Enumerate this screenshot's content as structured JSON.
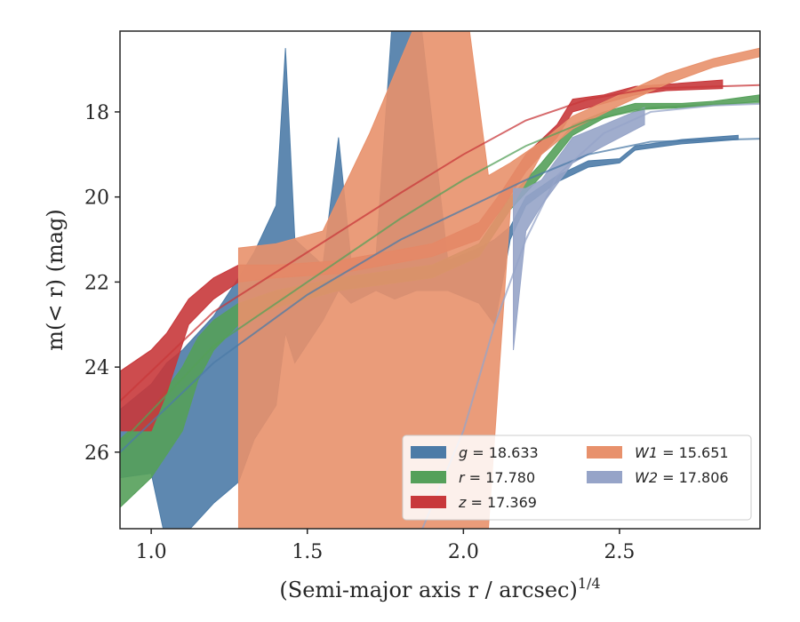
{
  "chart_data": {
    "type": "line",
    "xlabel": "(Semi-major axis r / arcsec)^1/4",
    "ylabel": "m(< r) (mag)",
    "xlim": [
      0.9,
      2.95
    ],
    "ylim": [
      27.8,
      16.1
    ],
    "y_inverted": true,
    "xticks": [
      1.0,
      1.5,
      2.0,
      2.5
    ],
    "xtick_labels": [
      "1.0",
      "1.5",
      "2.0",
      "2.5"
    ],
    "yticks": [
      18,
      20,
      22,
      24,
      26
    ],
    "ytick_labels": [
      "18",
      "20",
      "22",
      "24",
      "26"
    ],
    "grid": false,
    "legend_position": "lower-right",
    "legend_columns": 2,
    "series": [
      {
        "name": "g = 18.633",
        "legend_label": "g = 18.633",
        "color": "#4c7ba7",
        "band": [
          {
            "x": 0.9,
            "lo": 25.0,
            "hi": 26.6
          },
          {
            "x": 1.0,
            "lo": 24.4,
            "hi": 26.5
          },
          {
            "x": 1.05,
            "lo": 23.9,
            "hi": 28.2
          },
          {
            "x": 1.1,
            "lo": 23.6,
            "hi": 28.0
          },
          {
            "x": 1.2,
            "lo": 22.8,
            "hi": 27.2
          },
          {
            "x": 1.28,
            "lo": 21.9,
            "hi": 26.7
          },
          {
            "x": 1.33,
            "lo": 21.3,
            "hi": 25.7
          },
          {
            "x": 1.4,
            "lo": 20.2,
            "hi": 24.9
          },
          {
            "x": 1.43,
            "lo": 16.5,
            "hi": 23.2
          },
          {
            "x": 1.46,
            "lo": 21.0,
            "hi": 23.9
          },
          {
            "x": 1.55,
            "lo": 21.6,
            "hi": 22.9
          },
          {
            "x": 1.6,
            "lo": 18.6,
            "hi": 22.2
          },
          {
            "x": 1.64,
            "lo": 21.5,
            "hi": 22.5
          },
          {
            "x": 1.72,
            "lo": 21.4,
            "hi": 22.2
          },
          {
            "x": 1.78,
            "lo": 15.0,
            "hi": 22.4
          },
          {
            "x": 1.85,
            "lo": 15.0,
            "hi": 22.2
          },
          {
            "x": 1.95,
            "lo": 21.5,
            "hi": 22.2
          },
          {
            "x": 2.05,
            "lo": 21.2,
            "hi": 22.5
          },
          {
            "x": 2.1,
            "lo": 21.0,
            "hi": 23.0
          },
          {
            "x": 2.15,
            "lo": 20.7,
            "hi": 21.0
          },
          {
            "x": 2.2,
            "lo": 20.0,
            "hi": 20.2
          },
          {
            "x": 2.3,
            "lo": 19.5,
            "hi": 19.65
          },
          {
            "x": 2.4,
            "lo": 19.15,
            "hi": 19.3
          },
          {
            "x": 2.5,
            "lo": 19.1,
            "hi": 19.2
          },
          {
            "x": 2.55,
            "lo": 18.8,
            "hi": 18.9
          },
          {
            "x": 2.7,
            "lo": 18.65,
            "hi": 18.75
          },
          {
            "x": 2.88,
            "lo": 18.55,
            "hi": 18.65
          }
        ],
        "model": {
          "x": [
            0.9,
            1.2,
            1.5,
            1.8,
            2.0,
            2.2,
            2.4,
            2.6,
            2.95
          ],
          "y": [
            26.0,
            23.9,
            22.3,
            21.0,
            20.3,
            19.6,
            19.0,
            18.7,
            18.63
          ]
        }
      },
      {
        "name": "r = 17.780",
        "legend_label": "r = 17.780",
        "color": "#55a05a",
        "band": [
          {
            "x": 0.9,
            "lo": 25.7,
            "hi": 27.3
          },
          {
            "x": 1.0,
            "lo": 25.0,
            "hi": 26.6
          },
          {
            "x": 1.1,
            "lo": 24.0,
            "hi": 25.5
          },
          {
            "x": 1.15,
            "lo": 23.3,
            "hi": 24.3
          },
          {
            "x": 1.2,
            "lo": 22.9,
            "hi": 23.6
          },
          {
            "x": 1.28,
            "lo": 22.5,
            "hi": 23.0
          },
          {
            "x": 1.4,
            "lo": 22.2,
            "hi": 22.6
          },
          {
            "x": 1.6,
            "lo": 21.9,
            "hi": 22.2
          },
          {
            "x": 1.9,
            "lo": 21.6,
            "hi": 21.9
          },
          {
            "x": 2.05,
            "lo": 21.1,
            "hi": 21.4
          },
          {
            "x": 2.15,
            "lo": 20.0,
            "hi": 20.3
          },
          {
            "x": 2.25,
            "lo": 19.2,
            "hi": 19.5
          },
          {
            "x": 2.35,
            "lo": 18.3,
            "hi": 18.55
          },
          {
            "x": 2.45,
            "lo": 18.0,
            "hi": 18.15
          },
          {
            "x": 2.55,
            "lo": 17.8,
            "hi": 17.95
          },
          {
            "x": 2.7,
            "lo": 17.8,
            "hi": 17.9
          },
          {
            "x": 2.8,
            "lo": 17.75,
            "hi": 17.85
          },
          {
            "x": 2.95,
            "lo": 17.6,
            "hi": 17.75
          }
        ],
        "model": {
          "x": [
            0.9,
            1.2,
            1.5,
            1.8,
            2.0,
            2.2,
            2.4,
            2.6,
            2.95
          ],
          "y": [
            25.8,
            23.5,
            22.0,
            20.5,
            19.6,
            18.8,
            18.2,
            17.9,
            17.78
          ]
        }
      },
      {
        "name": "z = 17.369",
        "legend_label": "z = 17.369",
        "color": "#c8383b",
        "band": [
          {
            "x": 0.9,
            "lo": 24.1,
            "hi": 25.5
          },
          {
            "x": 1.0,
            "lo": 23.6,
            "hi": 25.5
          },
          {
            "x": 1.05,
            "lo": 23.2,
            "hi": 24.6
          },
          {
            "x": 1.12,
            "lo": 22.4,
            "hi": 23.0
          },
          {
            "x": 1.2,
            "lo": 21.9,
            "hi": 22.4
          },
          {
            "x": 1.28,
            "lo": 21.6,
            "hi": 22.0
          },
          {
            "x": 1.4,
            "lo": 21.6,
            "hi": 21.9
          },
          {
            "x": 1.6,
            "lo": 21.5,
            "hi": 21.8
          },
          {
            "x": 1.9,
            "lo": 21.1,
            "hi": 21.4
          },
          {
            "x": 2.05,
            "lo": 20.6,
            "hi": 21.0
          },
          {
            "x": 2.12,
            "lo": 19.9,
            "hi": 20.3
          },
          {
            "x": 2.2,
            "lo": 19.0,
            "hi": 19.4
          },
          {
            "x": 2.3,
            "lo": 18.3,
            "hi": 18.6
          },
          {
            "x": 2.35,
            "lo": 17.7,
            "hi": 18.0
          },
          {
            "x": 2.45,
            "lo": 17.6,
            "hi": 17.8
          },
          {
            "x": 2.55,
            "lo": 17.4,
            "hi": 17.6
          },
          {
            "x": 2.65,
            "lo": 17.35,
            "hi": 17.5
          },
          {
            "x": 2.83,
            "lo": 17.25,
            "hi": 17.45
          }
        ],
        "model": {
          "x": [
            0.9,
            1.2,
            1.5,
            1.8,
            2.0,
            2.2,
            2.4,
            2.6,
            2.95
          ],
          "y": [
            24.8,
            22.7,
            21.3,
            19.9,
            19.0,
            18.2,
            17.7,
            17.45,
            17.37
          ]
        }
      },
      {
        "name": "W1 = 15.651",
        "legend_label": "W1 = 15.651",
        "color": "#e8916c",
        "band": [
          {
            "x": 1.28,
            "lo": 21.2,
            "hi": 27.8
          },
          {
            "x": 1.4,
            "lo": 21.1,
            "hi": 27.8
          },
          {
            "x": 1.55,
            "lo": 20.8,
            "hi": 27.8
          },
          {
            "x": 1.7,
            "lo": 18.5,
            "hi": 27.8
          },
          {
            "x": 1.9,
            "lo": 15.0,
            "hi": 27.8
          },
          {
            "x": 2.0,
            "lo": 15.0,
            "hi": 27.8
          },
          {
            "x": 2.08,
            "lo": 19.5,
            "hi": 27.8
          },
          {
            "x": 2.15,
            "lo": 19.2,
            "hi": 20.3
          },
          {
            "x": 2.25,
            "lo": 18.7,
            "hi": 19.0
          },
          {
            "x": 2.35,
            "lo": 18.1,
            "hi": 18.4
          },
          {
            "x": 2.5,
            "lo": 17.6,
            "hi": 17.85
          },
          {
            "x": 2.65,
            "lo": 17.1,
            "hi": 17.35
          },
          {
            "x": 2.8,
            "lo": 16.75,
            "hi": 16.95
          },
          {
            "x": 2.95,
            "lo": 16.5,
            "hi": 16.7
          }
        ],
        "model": null
      },
      {
        "name": "W2 = 17.806",
        "legend_label": "W2 = 17.806",
        "color": "#96a4c8",
        "band": [
          {
            "x": 2.16,
            "lo": 19.8,
            "hi": 23.6
          },
          {
            "x": 2.2,
            "lo": 19.8,
            "hi": 20.8
          },
          {
            "x": 2.25,
            "lo": 19.6,
            "hi": 20.2
          },
          {
            "x": 2.35,
            "lo": 18.6,
            "hi": 19.2
          },
          {
            "x": 2.45,
            "lo": 18.3,
            "hi": 18.8
          },
          {
            "x": 2.58,
            "lo": 17.9,
            "hi": 18.3
          }
        ],
        "model": {
          "x": [
            1.8,
            2.0,
            2.1,
            2.2,
            2.3,
            2.45,
            2.6,
            2.8,
            2.95
          ],
          "y": [
            29.0,
            25.5,
            23.0,
            21.0,
            19.5,
            18.5,
            18.0,
            17.85,
            17.81
          ]
        }
      }
    ]
  }
}
